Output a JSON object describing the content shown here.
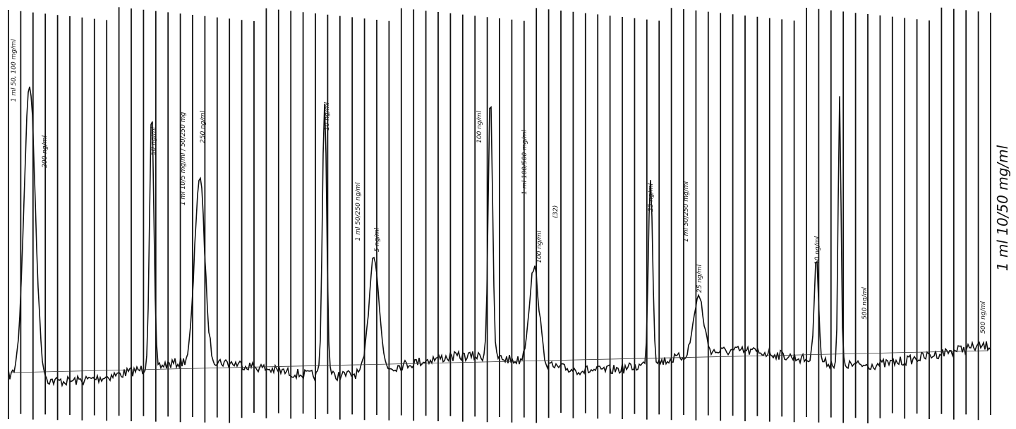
{
  "annotations": [
    "1 ml 50, 100 mg/ml",
    "200 ng/ml",
    "50 ng/ml",
    "1 ml 10/5 mg/ml / 50/250 mg",
    "250 ng/ml",
    "10 ng/ml",
    "1 ml 50/250 ng/ml",
    "5 ng/ml",
    "100 ng/ml",
    "1 ml 100/500 mg/ml",
    "100 ng/ml",
    "(32)",
    "25 ng/ml",
    "1 ml 50/250 mg/ml",
    "25 ng/ml",
    "10 ng/ml",
    "500 ng/ml",
    "500 ng/ml"
  ],
  "scale_note": "1 ml 10/50 mg/ml"
}
